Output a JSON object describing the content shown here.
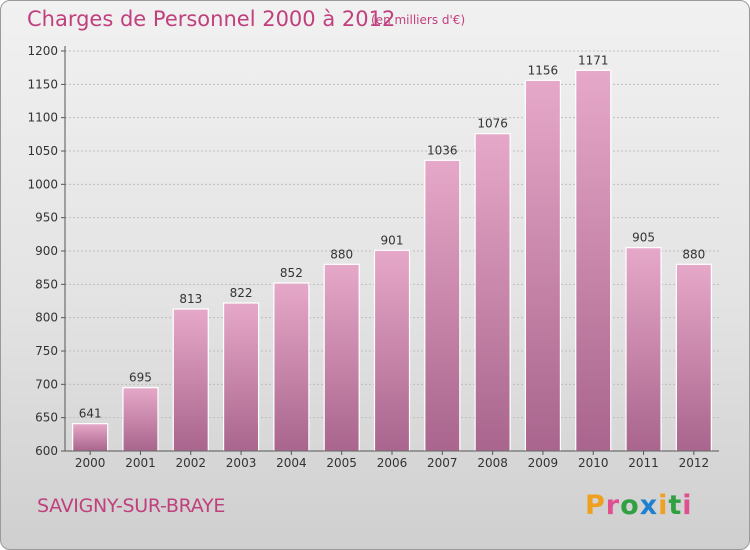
{
  "header": {
    "title": "Charges de Personnel 2000 à 2012",
    "subtitle": "(en milliers d'€)"
  },
  "footer": {
    "city": "SAVIGNY-SUR-BRAYE",
    "logo_text": "Proxiti",
    "logo_colors": [
      "#f0a020",
      "#e05090",
      "#30a040",
      "#2080d0",
      "#f0a020",
      "#30a040",
      "#e05090"
    ]
  },
  "colors": {
    "bar": "#d98db5",
    "label": "#333333",
    "grid": "#bdbdbd"
  },
  "chart_data": {
    "type": "bar",
    "title": "Charges de Personnel 2000 à 2012",
    "subtitle": "(en milliers d'€)",
    "categories": [
      "2000",
      "2001",
      "2002",
      "2003",
      "2004",
      "2005",
      "2006",
      "2007",
      "2008",
      "2009",
      "2010",
      "2011",
      "2012"
    ],
    "values": [
      641,
      695,
      813,
      822,
      852,
      880,
      901,
      1036,
      1076,
      1156,
      1171,
      905,
      880
    ],
    "ylim": [
      600,
      1200
    ],
    "yticks": [
      600,
      650,
      700,
      750,
      800,
      850,
      900,
      950,
      1000,
      1050,
      1100,
      1150,
      1200
    ],
    "grid": true,
    "xlabel": "",
    "ylabel": ""
  }
}
